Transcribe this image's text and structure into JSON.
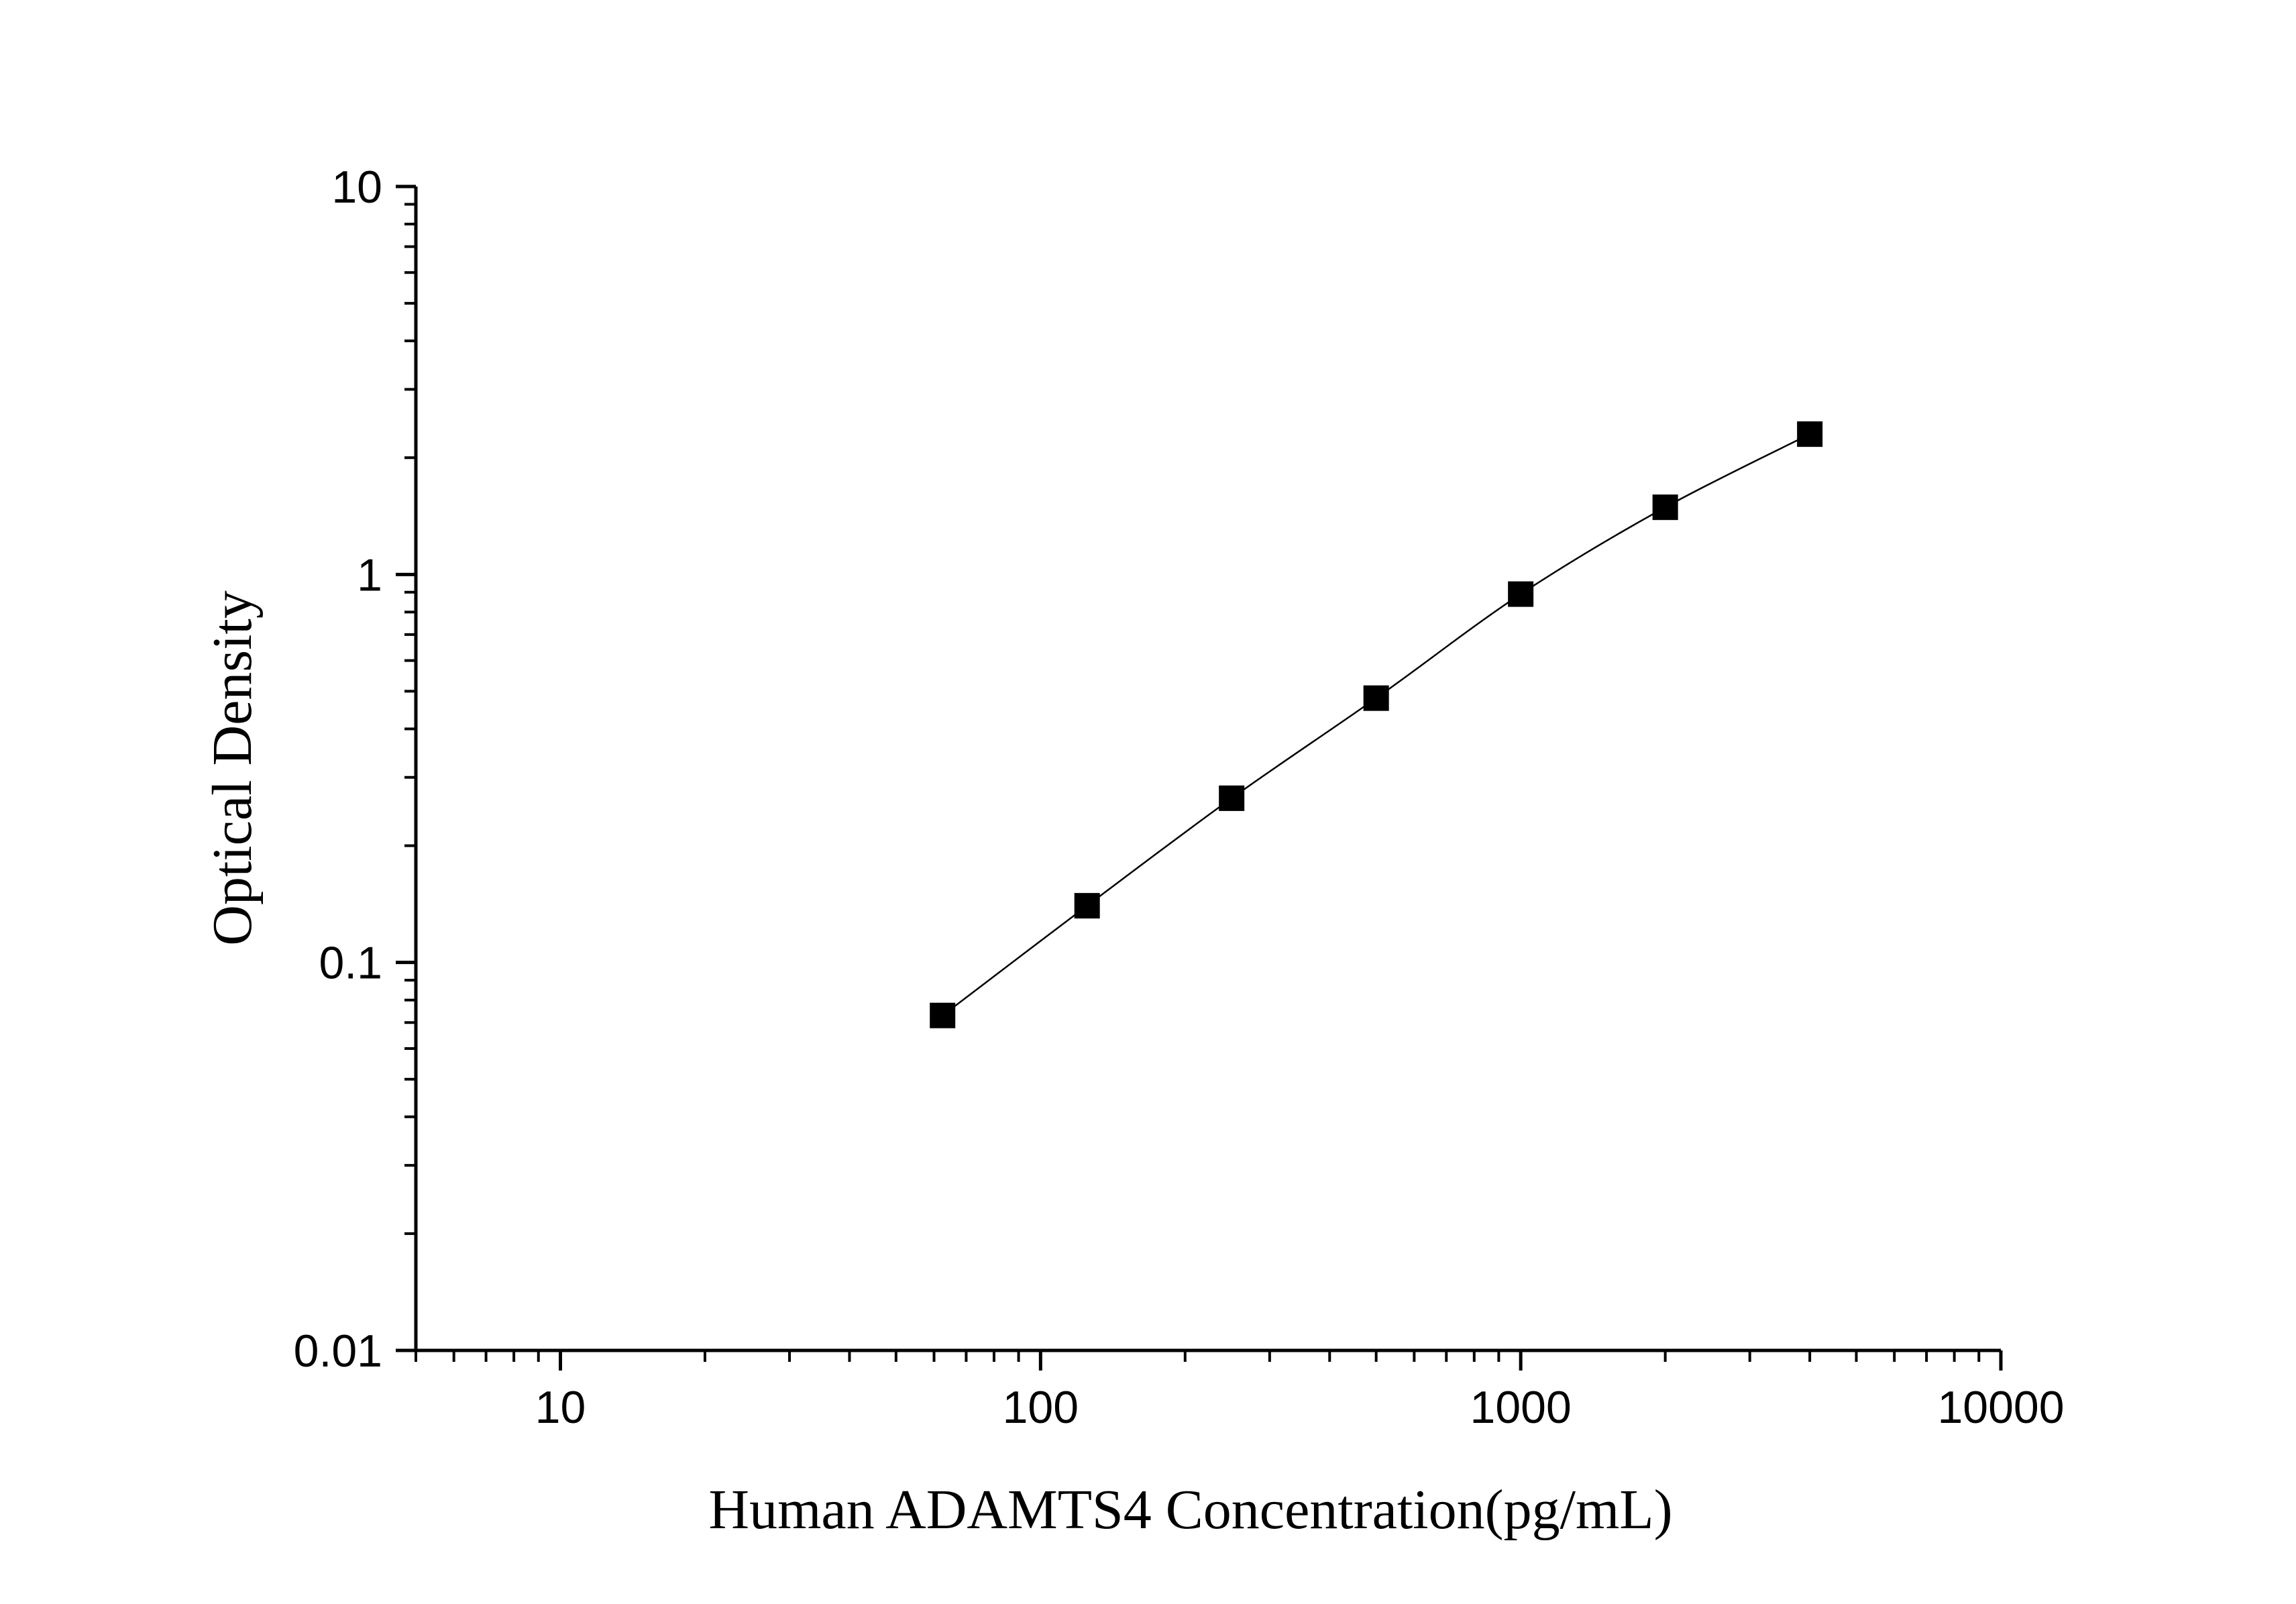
{
  "chart_data": {
    "type": "scatter",
    "xlabel": "Human ADAMTS4 Concentration(pg/mL)",
    "ylabel": "Optical Density",
    "x_scale": "log",
    "y_scale": "log",
    "xlim": [
      5,
      10000
    ],
    "ylim": [
      0.01,
      10
    ],
    "x_ticks": [
      10,
      100,
      1000,
      10000
    ],
    "x_tick_labels": [
      "10",
      "100",
      "1000",
      "10000"
    ],
    "y_ticks": [
      0.01,
      0.1,
      1,
      10
    ],
    "y_tick_labels": [
      "0.01",
      "0.1",
      "1",
      "10"
    ],
    "grid": false,
    "legend": "none",
    "marker": "square",
    "fit_line": true,
    "series": [
      {
        "x": [
          62.5,
          125,
          250,
          500,
          1000,
          2000,
          4000
        ],
        "y": [
          0.073,
          0.14,
          0.265,
          0.48,
          0.89,
          1.49,
          2.3
        ]
      }
    ],
    "colors": {
      "marker": "#000000",
      "line": "#000000",
      "axis": "#000000"
    }
  }
}
